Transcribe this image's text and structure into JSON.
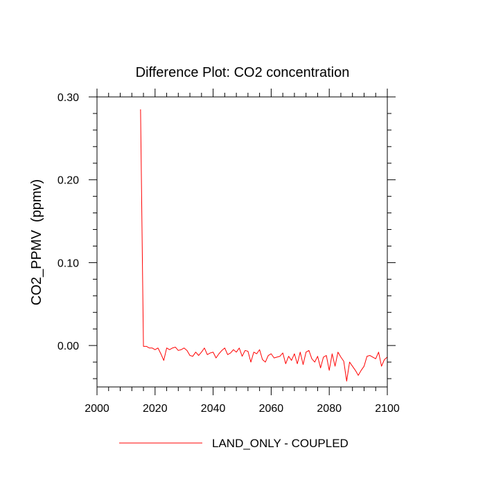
{
  "chart_data": {
    "type": "line",
    "title": "Difference Plot: CO2 concentration",
    "xlabel": "",
    "ylabel": "CO2_PPMV  (ppmv)",
    "xlim": [
      2000,
      2100
    ],
    "ylim": [
      -0.05,
      0.3
    ],
    "x_ticks": [
      2000,
      2020,
      2040,
      2060,
      2080,
      2100
    ],
    "x_tick_labels": [
      "2000",
      "2020",
      "2040",
      "2060",
      "2080",
      "2100"
    ],
    "y_ticks": [
      0.0,
      0.1,
      0.2,
      0.3
    ],
    "y_tick_labels": [
      "0.00",
      "0.10",
      "0.20",
      "0.30"
    ],
    "legend_position": "bottom-center",
    "series": [
      {
        "name": "LAND_ONLY - COUPLED",
        "color": "#ff0000",
        "x": [
          2015,
          2016,
          2017,
          2018,
          2019,
          2020,
          2021,
          2022,
          2023,
          2024,
          2025,
          2026,
          2027,
          2028,
          2029,
          2030,
          2031,
          2032,
          2033,
          2034,
          2035,
          2036,
          2037,
          2038,
          2039,
          2040,
          2041,
          2042,
          2043,
          2044,
          2045,
          2046,
          2047,
          2048,
          2049,
          2050,
          2051,
          2052,
          2053,
          2054,
          2055,
          2056,
          2057,
          2058,
          2059,
          2060,
          2061,
          2062,
          2063,
          2064,
          2065,
          2066,
          2067,
          2068,
          2069,
          2070,
          2071,
          2072,
          2073,
          2074,
          2075,
          2076,
          2077,
          2078,
          2079,
          2080,
          2081,
          2082,
          2083,
          2084,
          2085,
          2086,
          2087,
          2088,
          2089,
          2090,
          2091,
          2092,
          2093,
          2094,
          2095,
          2096,
          2097,
          2098,
          2099,
          2100
        ],
        "values": [
          0.285,
          -0.001,
          -0.001,
          -0.003,
          -0.003,
          -0.005,
          -0.003,
          -0.01,
          -0.018,
          -0.003,
          -0.005,
          -0.003,
          -0.002,
          -0.006,
          -0.005,
          -0.003,
          -0.006,
          -0.012,
          -0.013,
          -0.008,
          -0.012,
          -0.008,
          -0.003,
          -0.011,
          -0.009,
          -0.008,
          -0.015,
          -0.01,
          -0.006,
          -0.003,
          -0.011,
          -0.009,
          -0.005,
          -0.008,
          -0.003,
          -0.013,
          -0.006,
          -0.007,
          -0.02,
          -0.008,
          -0.01,
          -0.005,
          -0.017,
          -0.02,
          -0.012,
          -0.01,
          -0.015,
          -0.014,
          -0.013,
          -0.009,
          -0.022,
          -0.013,
          -0.018,
          -0.01,
          -0.022,
          -0.008,
          -0.023,
          -0.008,
          -0.006,
          -0.016,
          -0.02,
          -0.013,
          -0.027,
          -0.014,
          -0.012,
          -0.03,
          -0.01,
          -0.025,
          -0.008,
          -0.014,
          -0.019,
          -0.043,
          -0.02,
          -0.025,
          -0.03,
          -0.036,
          -0.03,
          -0.025,
          -0.013,
          -0.012,
          -0.014,
          -0.016,
          -0.008,
          -0.025,
          -0.017,
          -0.014
        ]
      }
    ]
  }
}
